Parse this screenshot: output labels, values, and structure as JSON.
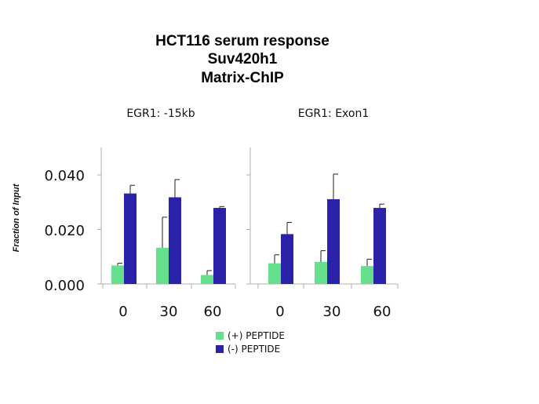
{
  "titles": [
    "HCT116 serum response",
    "Suv420h1",
    "Matrix-ChIP"
  ],
  "colors": {
    "plus": "#66e08c",
    "minus": "#2a22a8"
  },
  "chart_data": {
    "type": "bar",
    "title": "HCT116 serum response Suv420h1 Matrix-ChIP",
    "ylabel": "Fraction of Input",
    "ylim": [
      0,
      0.04
    ],
    "yticks": [
      "0.000",
      "0.020",
      "0.040"
    ],
    "categories": [
      "0",
      "30",
      "60"
    ],
    "legend_position": "bottom-center",
    "legend": [
      "(+) PEPTIDE",
      "(-) PEPTIDE"
    ],
    "panels": [
      {
        "title": "EGR1: -15kb",
        "series": [
          {
            "name": "(+) PEPTIDE",
            "values": [
              0.0068,
              0.0133,
              0.0033
            ],
            "errors": [
              0.0008,
              0.0112,
              0.0016
            ]
          },
          {
            "name": "(-) PEPTIDE",
            "values": [
              0.0332,
              0.0318,
              0.0279
            ],
            "errors": [
              0.003,
              0.0065,
              0.0005
            ]
          }
        ]
      },
      {
        "title": "EGR1: Exon1",
        "series": [
          {
            "name": "(+) PEPTIDE",
            "values": [
              0.0076,
              0.0081,
              0.0066
            ],
            "errors": [
              0.0031,
              0.0041,
              0.0025
            ]
          },
          {
            "name": "(-) PEPTIDE",
            "values": [
              0.0183,
              0.0311,
              0.0279
            ],
            "errors": [
              0.0043,
              0.0092,
              0.0014
            ]
          }
        ]
      }
    ]
  }
}
